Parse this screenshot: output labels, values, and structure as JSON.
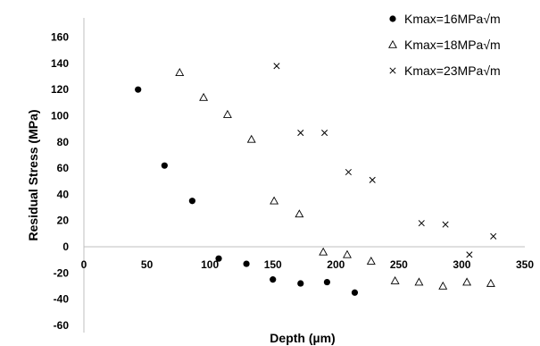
{
  "chart_data": {
    "type": "scatter",
    "xlabel": "Depth (µm)",
    "ylabel": "Residual Stress (MPa)",
    "xlim": [
      0,
      350
    ],
    "ylim": [
      -60,
      160
    ],
    "xticks": [
      "0",
      "50",
      "100",
      "150",
      "200",
      "250",
      "300",
      "350"
    ],
    "yticks": [
      "-60",
      "-40",
      "-20",
      "0",
      "20",
      "40",
      "60",
      "80",
      "100",
      "120",
      "140",
      "160"
    ],
    "grid": false,
    "legend_position": "top-right",
    "series": [
      {
        "name": "Kmax=16MPa√m",
        "marker": "filled-circle",
        "color": "#000000",
        "points": [
          [
            43,
            120
          ],
          [
            64,
            62
          ],
          [
            86,
            35
          ],
          [
            107,
            -9
          ],
          [
            129,
            -13
          ],
          [
            150,
            -25
          ],
          [
            172,
            -28
          ],
          [
            193,
            -27
          ],
          [
            215,
            -35
          ]
        ]
      },
      {
        "name": "Kmax=18MPa√m",
        "marker": "open-triangle",
        "color": "#000000",
        "points": [
          [
            76,
            133
          ],
          [
            95,
            114
          ],
          [
            114,
            101
          ],
          [
            133,
            82
          ],
          [
            151,
            35
          ],
          [
            171,
            25
          ],
          [
            190,
            -4
          ],
          [
            209,
            -6
          ],
          [
            228,
            -11
          ],
          [
            247,
            -26
          ],
          [
            266,
            -27
          ],
          [
            285,
            -30
          ],
          [
            304,
            -27
          ],
          [
            323,
            -28
          ]
        ]
      },
      {
        "name": "Kmax=23MPa√m",
        "marker": "x",
        "color": "#000000",
        "points": [
          [
            153,
            138
          ],
          [
            172,
            87
          ],
          [
            191,
            87
          ],
          [
            210,
            57
          ],
          [
            229,
            51
          ],
          [
            268,
            18
          ],
          [
            287,
            17
          ],
          [
            306,
            -6
          ],
          [
            325,
            8
          ]
        ]
      }
    ]
  }
}
